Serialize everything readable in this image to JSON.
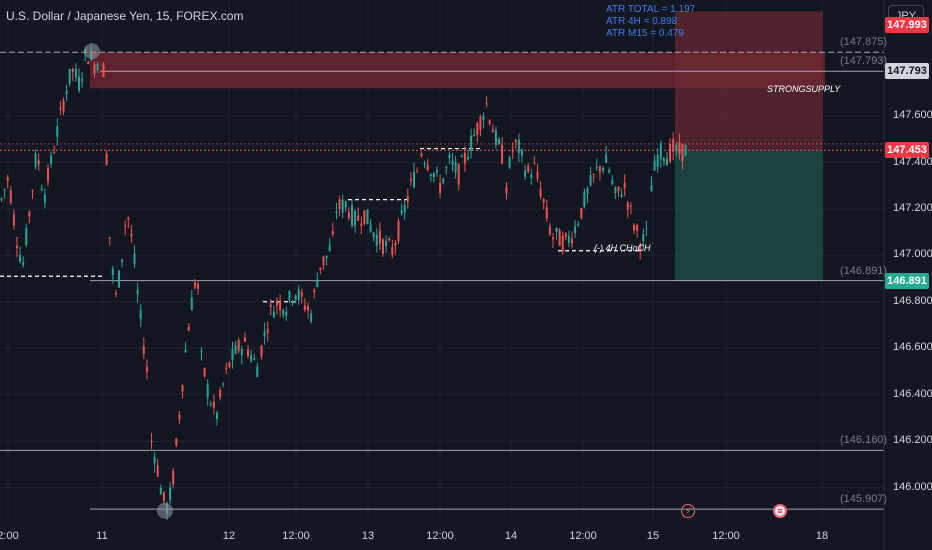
{
  "header": {
    "title": "U.S. Dollar / Japanese Yen, 15, FOREX.com",
    "currency_button": "JPY"
  },
  "atr": [
    "ATR TOTAL = 1.197",
    "ATR 4H = 0.898",
    "ATR M15 = 0.479"
  ],
  "colors": {
    "background": "#131722",
    "up_candle": "#26a69a",
    "down_candle": "#ef5350",
    "supply_zone": "#7a2631",
    "target_zone": "#1f4a45",
    "stop_zone": "#6b2a32",
    "atr_text": "#2962ff"
  },
  "annotations": {
    "strong_supply": "STRONGSUPPLY",
    "choch": "(-) 4H CHoCH"
  },
  "events": [
    {
      "name": "lightning-event-icon",
      "glyph": "⚡"
    },
    {
      "name": "us-flag-event-icon",
      "glyph": "≡"
    }
  ],
  "chart_data": {
    "type": "candlestick",
    "symbol": "U.S. Dollar / Japanese Yen",
    "timeframe": "15",
    "source": "FOREX.com",
    "x_tick_labels": [
      "2:00",
      "11",
      "12",
      "12:00",
      "13",
      "12:00",
      "14",
      "12:00",
      "15",
      "12:00",
      "18"
    ],
    "y_tick_labels": [
      "146.000",
      "146.200",
      "146.400",
      "146.600",
      "146.800",
      "147.000",
      "147.200",
      "147.400",
      "147.600"
    ],
    "ylim": [
      145.86,
      148.1
    ],
    "price_labels": [
      {
        "value": 147.993,
        "text": "147.993",
        "role": "stop"
      },
      {
        "value": 147.793,
        "text": "147.793",
        "role": "level"
      },
      {
        "value": 147.453,
        "text": "147.453",
        "role": "last_price"
      },
      {
        "value": 146.891,
        "text": "146.891",
        "role": "target"
      }
    ],
    "horizontal_levels": [
      {
        "value": 147.875,
        "text": "(147.875)"
      },
      {
        "value": 147.793,
        "text": "(147.793)"
      },
      {
        "value": 146.891,
        "text": "(146.891)"
      },
      {
        "value": 146.16,
        "text": "(146.160)"
      },
      {
        "value": 145.907,
        "text": "(145.907)"
      }
    ],
    "path": [
      [
        147.24,
        147.34,
        147.1,
        146.95,
        147.2,
        147.45,
        147.25,
        147.4,
        147.55,
        147.7,
        147.8,
        147.74,
        147.88,
        147.82,
        147.85
      ],
      [
        147.8,
        147.1,
        146.8,
        146.95,
        147.2,
        147.05,
        146.8,
        146.6,
        146.4
      ],
      [
        146.2,
        146.1,
        145.95,
        145.91,
        146.05,
        146.3,
        146.55,
        146.75,
        146.9,
        146.8
      ],
      [
        146.55,
        146.4,
        146.3,
        146.45,
        146.55,
        146.6,
        146.62,
        146.55,
        146.5
      ],
      [
        146.6,
        146.75,
        146.8,
        146.78,
        146.85,
        146.8,
        146.75,
        146.95,
        147.0,
        147.1
      ],
      [
        147.2,
        147.22,
        147.15,
        147.18,
        147.1,
        147.05,
        147.02,
        147.15,
        147.3,
        147.4
      ],
      [
        147.45,
        147.38,
        147.3,
        147.4,
        147.35,
        147.45,
        147.55,
        147.65,
        147.5,
        147.4
      ],
      [
        147.3,
        147.45,
        147.48,
        147.4,
        147.35,
        147.38,
        147.3,
        147.2,
        147.1,
        147.05
      ],
      [
        147.08,
        147.05,
        147.1,
        147.2,
        147.3,
        147.38,
        147.4,
        147.25,
        147.3,
        147.15,
        147.05,
        147.1
      ],
      [
        147.3,
        147.42,
        147.45,
        147.43,
        147.46,
        147.44,
        147.45,
        147.453
      ]
    ]
  }
}
